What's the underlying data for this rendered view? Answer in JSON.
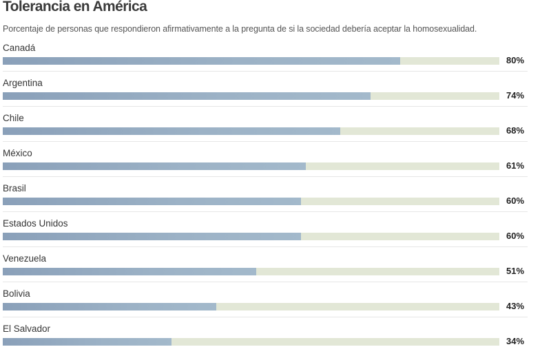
{
  "title": "Tolerancia en América",
  "subtitle": "Porcentaje de personas que respondieron afirmativamente a la pregunta de si la sociedad debería aceptar la homosexualidad.",
  "colors": {
    "bar_fill": "#8aa0b9",
    "bar_track": "#e2e7d6"
  },
  "chart_data": {
    "type": "bar",
    "orientation": "horizontal",
    "categories": [
      "Canadá",
      "Argentina",
      "Chile",
      "México",
      "Brasil",
      "Estados Unidos",
      "Venezuela",
      "Bolivia",
      "El Salvador"
    ],
    "values": [
      80,
      74,
      68,
      61,
      60,
      60,
      51,
      43,
      34
    ],
    "value_labels": [
      "80%",
      "74%",
      "68%",
      "61%",
      "60%",
      "60%",
      "51%",
      "43%",
      "34%"
    ],
    "xlim": [
      0,
      100
    ],
    "grid": false,
    "legend": "none"
  }
}
